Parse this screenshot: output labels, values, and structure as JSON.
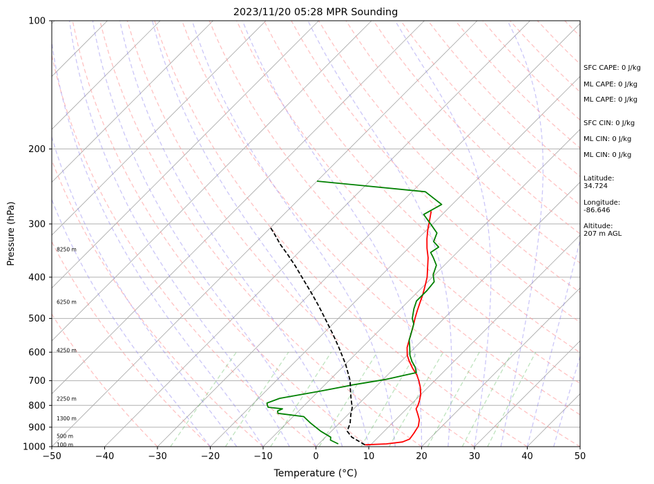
{
  "chart_data": {
    "type": "line",
    "title": "2023/11/20 05:28 MPR Sounding",
    "xlabel": "Temperature (°C)",
    "ylabel": "Pressure (hPa)",
    "xlim": [
      -50,
      50
    ],
    "ylim": [
      1000,
      100
    ],
    "y_scale": "log",
    "skew": true,
    "grid": true,
    "x_ticks": [
      -50,
      -40,
      -30,
      -20,
      -10,
      0,
      10,
      20,
      30,
      40,
      50
    ],
    "y_ticks": [
      100,
      200,
      300,
      400,
      500,
      600,
      700,
      800,
      900,
      1000
    ],
    "height_labels": [
      {
        "pressure": 1000,
        "label": "100 m"
      },
      {
        "pressure": 955,
        "label": "500 m"
      },
      {
        "pressure": 868,
        "label": "1300 m"
      },
      {
        "pressure": 780,
        "label": "2250 m"
      },
      {
        "pressure": 600,
        "label": "4250 m"
      },
      {
        "pressure": 462,
        "label": "6250 m"
      },
      {
        "pressure": 348,
        "label": "8250 m"
      }
    ],
    "series": [
      {
        "color": "#ff0000",
        "points": [
          [
            8.9,
            990
          ],
          [
            12.8,
            985
          ],
          [
            15.5,
            975
          ],
          [
            16.3,
            960
          ],
          [
            16.0,
            930
          ],
          [
            15.5,
            895
          ],
          [
            14.5,
            865
          ],
          [
            13.2,
            840
          ],
          [
            11.8,
            815
          ],
          [
            11.5,
            800
          ],
          [
            10.9,
            780
          ],
          [
            10.0,
            755
          ],
          [
            8.5,
            725
          ],
          [
            7.0,
            700
          ],
          [
            5.5,
            678
          ],
          [
            3.5,
            655
          ],
          [
            1.5,
            630
          ],
          [
            0.0,
            610
          ],
          [
            -1.5,
            585
          ],
          [
            -2.5,
            562
          ],
          [
            -3.5,
            540
          ],
          [
            -4.7,
            515
          ],
          [
            -5.5,
            500
          ],
          [
            -6.5,
            480
          ],
          [
            -7.5,
            460
          ],
          [
            -8.5,
            440
          ],
          [
            -9.7,
            420
          ],
          [
            -11.0,
            400
          ],
          [
            -12.7,
            380
          ],
          [
            -14.5,
            360
          ],
          [
            -16.5,
            342
          ],
          [
            -18.3,
            325
          ],
          [
            -19.8,
            310
          ],
          [
            -21.2,
            295
          ],
          [
            -22.2,
            285
          ],
          [
            -22.7,
            280
          ]
        ]
      },
      {
        "color": "#008000",
        "points": [
          [
            3.7,
            985
          ],
          [
            1.5,
            965
          ],
          [
            1.0,
            950
          ],
          [
            -2.0,
            920
          ],
          [
            -5.5,
            880
          ],
          [
            -8.0,
            850
          ],
          [
            -13.5,
            835
          ],
          [
            -14.0,
            825
          ],
          [
            -13.5,
            815
          ],
          [
            -16.5,
            808
          ],
          [
            -17.0,
            800
          ],
          [
            -17.5,
            790
          ],
          [
            -16.0,
            770
          ],
          [
            -9.5,
            740
          ],
          [
            -4.5,
            715
          ],
          [
            0.5,
            695
          ],
          [
            5.0,
            670
          ],
          [
            3.7,
            650
          ],
          [
            2.0,
            630
          ],
          [
            0.5,
            610
          ],
          [
            -1.0,
            585
          ],
          [
            -2.5,
            562
          ],
          [
            -3.5,
            540
          ],
          [
            -4.7,
            515
          ],
          [
            -6.0,
            500
          ],
          [
            -7.5,
            475
          ],
          [
            -8.5,
            455
          ],
          [
            -8.5,
            430
          ],
          [
            -8.8,
            410
          ],
          [
            -10.3,
            395
          ],
          [
            -11.5,
            375
          ],
          [
            -13.5,
            360
          ],
          [
            -15.0,
            350
          ],
          [
            -14.5,
            340
          ],
          [
            -16.5,
            330
          ],
          [
            -17.5,
            315
          ],
          [
            -20.0,
            302
          ],
          [
            -23.5,
            285
          ],
          [
            -22.0,
            270
          ],
          [
            -27.5,
            252
          ],
          [
            -50.0,
            238
          ]
        ]
      },
      {
        "color": "#000000",
        "dashed": true,
        "points": [
          [
            8.9,
            990
          ],
          [
            5.0,
            950
          ],
          [
            3.0,
            920
          ],
          [
            2.0,
            880
          ],
          [
            0.5,
            840
          ],
          [
            -0.5,
            810
          ],
          [
            -2.5,
            770
          ],
          [
            -4.5,
            730
          ],
          [
            -6.0,
            700
          ],
          [
            -10.0,
            640
          ],
          [
            -14.0,
            590
          ],
          [
            -18.0,
            545
          ],
          [
            -22.0,
            505
          ],
          [
            -26.0,
            468
          ],
          [
            -30.0,
            435
          ],
          [
            -34.0,
            405
          ],
          [
            -38.0,
            377
          ],
          [
            -41.5,
            355
          ],
          [
            -45.0,
            335
          ],
          [
            -48.0,
            317
          ],
          [
            -50.0,
            306
          ]
        ]
      }
    ]
  },
  "info": {
    "sfc_cape": "SFC CAPE: 0 J/kg",
    "ml_cape_1": "ML CAPE: 0 J/kg",
    "ml_cape_2": "ML CAPE: 0 J/kg",
    "sfc_cin": "SFC CIN: 0 J/kg",
    "ml_cin_1": "ML CIN: 0 J/kg",
    "ml_cin_2": "ML CIN: 0 J/kg",
    "latitude": "Latitude:\n34.724",
    "longitude": "Longitude:\n-86.646",
    "altitude": "Altitude:\n207 m AGL"
  }
}
